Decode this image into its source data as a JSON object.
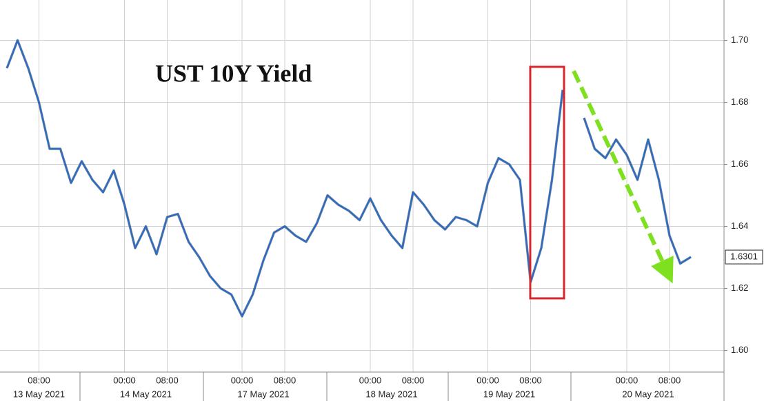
{
  "chart_data": {
    "type": "line",
    "title": "UST 10Y Yield",
    "categories": [
      null,
      null,
      null,
      "08:00",
      null,
      null,
      null,
      null,
      null,
      null,
      null,
      "00:00",
      null,
      null,
      null,
      "08:00",
      null,
      null,
      null,
      null,
      null,
      null,
      "00:00",
      null,
      null,
      null,
      "08:00",
      null,
      null,
      null,
      null,
      null,
      null,
      null,
      "00:00",
      null,
      null,
      null,
      "08:00",
      null,
      null,
      null,
      null,
      null,
      null,
      "00:00",
      null,
      null,
      null,
      "08:00",
      null,
      null,
      null,
      null,
      null,
      null,
      null,
      null,
      "00:00",
      null,
      null,
      null,
      "08:00",
      null,
      null
    ],
    "date_labels": [
      null,
      null,
      null,
      "13 May 2021",
      null,
      null,
      null,
      null,
      null,
      null,
      null,
      null,
      null,
      "14 May 2021",
      null,
      null,
      null,
      null,
      null,
      null,
      null,
      null,
      null,
      null,
      "17 May 2021",
      null,
      null,
      null,
      null,
      null,
      null,
      null,
      null,
      null,
      null,
      null,
      "18 May 2021",
      null,
      null,
      null,
      null,
      null,
      null,
      null,
      null,
      null,
      null,
      "19 May 2021",
      null,
      null,
      null,
      null,
      null,
      null,
      null,
      null,
      null,
      null,
      null,
      null,
      "20 May 2021",
      null,
      null,
      null,
      null
    ],
    "series": [
      {
        "name": "UST 10Y Yield",
        "color": "#2a6bc4",
        "values": [
          1.691,
          1.7,
          1.691,
          1.68,
          1.665,
          1.665,
          1.654,
          1.661,
          1.655,
          1.651,
          1.658,
          1.647,
          1.633,
          1.64,
          1.631,
          1.643,
          1.644,
          1.635,
          1.63,
          1.624,
          1.62,
          1.618,
          1.611,
          1.618,
          1.629,
          1.638,
          1.64,
          1.637,
          1.635,
          1.641,
          1.65,
          1.647,
          1.645,
          1.642,
          1.649,
          1.642,
          1.637,
          1.633,
          1.651,
          1.647,
          1.642,
          1.639,
          1.643,
          1.642,
          1.64,
          1.654,
          1.662,
          1.66,
          1.655,
          1.622,
          1.633,
          1.655,
          1.684,
          null,
          1.675,
          1.665,
          1.662,
          1.668,
          1.663,
          1.655,
          1.668,
          1.655,
          1.637,
          1.628,
          1.6301
        ]
      }
    ],
    "last_label": "1.6301",
    "ylim": [
      1.593,
      1.713
    ],
    "yticks": [
      {
        "value": 1.6,
        "label": "1.60"
      },
      1.62,
      1.64,
      1.66,
      1.68,
      {
        "value": 1.7,
        "label": "1.70"
      }
    ],
    "grid": true
  }
}
